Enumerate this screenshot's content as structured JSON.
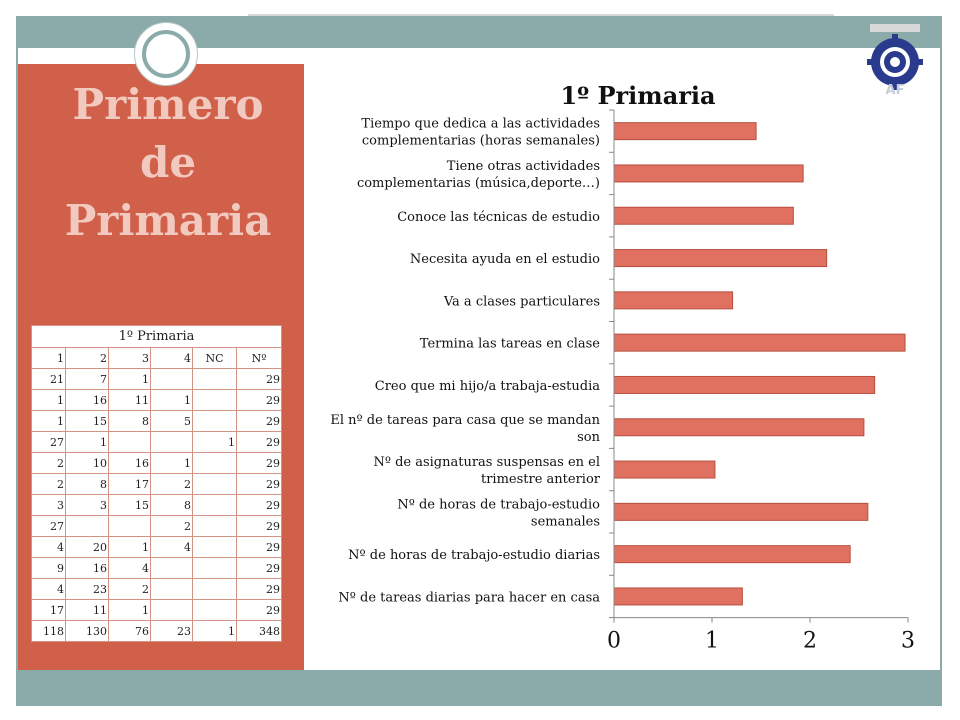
{
  "slide": {
    "title_lines": [
      "Primero",
      "de",
      "Primaria"
    ],
    "colors": {
      "frame": "#8BAAAA",
      "panel": "#D0604A",
      "bar": "#E07060",
      "bar_edge": "#B85040"
    },
    "logo": {
      "icon": "gear-logo",
      "text": "AF"
    }
  },
  "table": {
    "title": "1º Primaria",
    "headers": [
      "1",
      "2",
      "3",
      "4",
      "NC",
      "Nº"
    ],
    "rows": [
      [
        "21",
        "7",
        "1",
        "",
        "",
        "29"
      ],
      [
        "1",
        "16",
        "11",
        "1",
        "",
        "29"
      ],
      [
        "1",
        "15",
        "8",
        "5",
        "",
        "29"
      ],
      [
        "27",
        "1",
        "",
        "",
        "1",
        "29"
      ],
      [
        "2",
        "10",
        "16",
        "1",
        "",
        "29"
      ],
      [
        "2",
        "8",
        "17",
        "2",
        "",
        "29"
      ],
      [
        "3",
        "3",
        "15",
        "8",
        "",
        "29"
      ],
      [
        "27",
        "",
        "",
        "2",
        "",
        "29"
      ],
      [
        "4",
        "20",
        "1",
        "4",
        "",
        "29"
      ],
      [
        "9",
        "16",
        "4",
        "",
        "",
        "29"
      ],
      [
        "4",
        "23",
        "2",
        "",
        "",
        "29"
      ],
      [
        "17",
        "11",
        "1",
        "",
        "",
        "29"
      ],
      [
        "118",
        "130",
        "76",
        "23",
        "1",
        "348"
      ]
    ]
  },
  "chart_data": {
    "type": "bar",
    "orientation": "horizontal",
    "title": "1º Primaria",
    "categories": [
      "Tiempo que dedica a las actividades complementarias (horas semanales)",
      "Tiene otras actividades complementarias (música,deporte…)",
      "Conoce las técnicas de estudio",
      "Necesita ayuda en el estudio",
      "Va a clases particulares",
      "Termina las tareas en clase",
      "Creo que mi hijo/a trabaja-estudia",
      "El nº de tareas para casa que se mandan son",
      "Nº de asignaturas suspensas en el trimestre anterior",
      "Nº de horas de trabajo-estudio semanales",
      "Nº de horas de trabajo-estudio diarias",
      "Nº de tareas diarias para hacer en casa"
    ],
    "category_lines": [
      [
        "Tiempo que dedica a las actividades",
        "complementarias (horas semanales)"
      ],
      [
        "Tiene otras actividades",
        "complementarias (música,deporte…)"
      ],
      [
        "Conoce las técnicas de estudio"
      ],
      [
        "Necesita ayuda en el estudio"
      ],
      [
        "Va a clases particulares"
      ],
      [
        "Termina las tareas en clase"
      ],
      [
        "Creo que mi hijo/a trabaja-estudia"
      ],
      [
        "El nº de tareas para casa que se mandan",
        "son"
      ],
      [
        "Nº de asignaturas suspensas en el",
        "trimestre anterior"
      ],
      [
        "Nº de horas de trabajo-estudio",
        "semanales"
      ],
      [
        "Nº de horas de trabajo-estudio diarias"
      ],
      [
        "Nº de tareas diarias para hacer en casa"
      ]
    ],
    "values": [
      1.45,
      1.93,
      1.83,
      2.17,
      1.21,
      2.97,
      2.66,
      2.55,
      1.03,
      2.59,
      2.41,
      1.31
    ],
    "xlim": [
      0,
      3
    ],
    "xticks": [
      "0",
      "1",
      "2",
      "3"
    ],
    "xlabel": "",
    "ylabel": "",
    "grid": false,
    "legend": "none"
  }
}
